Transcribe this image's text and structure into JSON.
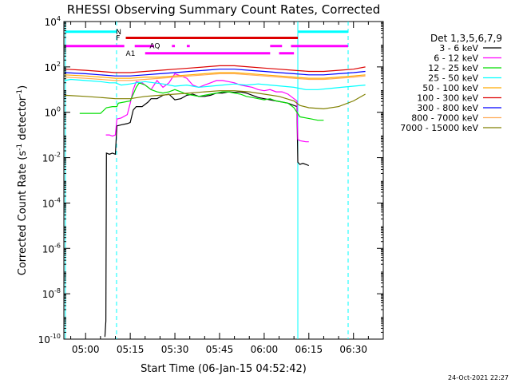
{
  "chart_data": {
    "type": "line",
    "title": "RHESSI Observing Summary Count Rates, Corrected",
    "xlabel": "Start Time (06-Jan-15 04:52:42)",
    "ylabel_main": "Corrected Count Rate (s",
    "ylabel_sup1": "-1",
    "ylabel_mid": " detector",
    "ylabel_sup2": "-1",
    "ylabel_end": ")",
    "ylog": true,
    "ylim_exp": [
      -10,
      4
    ],
    "xlim_min": [
      -7.3,
      100
    ],
    "xticks": [
      {
        "label": "05:00",
        "min": 0
      },
      {
        "label": "05:15",
        "min": 15
      },
      {
        "label": "05:30",
        "min": 30
      },
      {
        "label": "05:45",
        "min": 45
      },
      {
        "label": "06:00",
        "min": 60
      },
      {
        "label": "06:15",
        "min": 75
      },
      {
        "label": "06:30",
        "min": 90
      }
    ],
    "yticks": [
      {
        "base": "10",
        "exp": "4",
        "v": 4
      },
      {
        "base": "10",
        "exp": "2",
        "v": 2
      },
      {
        "base": "10",
        "exp": "0",
        "v": 0
      },
      {
        "base": "10",
        "exp": "-2",
        "v": -2
      },
      {
        "base": "10",
        "exp": "-4",
        "v": -4
      },
      {
        "base": "10",
        "exp": "-6",
        "v": -6
      },
      {
        "base": "10",
        "exp": "-8",
        "v": -8
      },
      {
        "base": "10",
        "exp": "-10",
        "v": -10
      }
    ],
    "legend_title": "Det 1,3,5,6,7,9",
    "legend_placement": "right",
    "series": [
      {
        "name": "3 - 6 keV",
        "color": "#000000",
        "points": [
          [
            6.5,
            -9.9
          ],
          [
            6.8,
            -9.2
          ],
          [
            7,
            -1.8
          ],
          [
            8,
            -1.85
          ],
          [
            9,
            -1.8
          ],
          [
            10,
            -1.85
          ],
          [
            10.5,
            -0.6
          ],
          [
            12,
            -0.55
          ],
          [
            14,
            -0.5
          ],
          [
            15,
            -0.45
          ],
          [
            16,
            0.1
          ],
          [
            17,
            0.25
          ],
          [
            19,
            0.25
          ],
          [
            21,
            0.45
          ],
          [
            22,
            0.6
          ],
          [
            24,
            0.6
          ],
          [
            26,
            0.75
          ],
          [
            28,
            0.8
          ],
          [
            30,
            0.55
          ],
          [
            32,
            0.6
          ],
          [
            34,
            0.75
          ],
          [
            36,
            0.8
          ],
          [
            38,
            0.7
          ],
          [
            40,
            0.7
          ],
          [
            42,
            0.75
          ],
          [
            44,
            0.85
          ],
          [
            46,
            0.85
          ],
          [
            48,
            0.9
          ],
          [
            50,
            0.88
          ],
          [
            52,
            0.9
          ],
          [
            54,
            0.85
          ],
          [
            56,
            0.75
          ],
          [
            58,
            0.65
          ],
          [
            60,
            0.6
          ],
          [
            62,
            0.55
          ],
          [
            64,
            0.5
          ],
          [
            66,
            0.45
          ],
          [
            68,
            0.4
          ],
          [
            70,
            0.3
          ],
          [
            71,
            0.25
          ],
          [
            71.3,
            -2.2
          ],
          [
            72,
            -2.3
          ],
          [
            73,
            -2.25
          ],
          [
            74,
            -2.3
          ],
          [
            75,
            -2.35
          ]
        ]
      },
      {
        "name": "6 - 12 keV",
        "color": "#ff00ff",
        "points": [
          [
            6.8,
            -1.0
          ],
          [
            8,
            -1.0
          ],
          [
            9,
            -1.05
          ],
          [
            10,
            -1.0
          ],
          [
            10.5,
            -0.3
          ],
          [
            12,
            -0.25
          ],
          [
            14,
            -0.1
          ],
          [
            15,
            0.4
          ],
          [
            16,
            1.0
          ],
          [
            17,
            1.35
          ],
          [
            19,
            1.3
          ],
          [
            21,
            1.1
          ],
          [
            22,
            1.0
          ],
          [
            24,
            1.4
          ],
          [
            26,
            1.1
          ],
          [
            28,
            1.3
          ],
          [
            30,
            1.7
          ],
          [
            32,
            1.6
          ],
          [
            34,
            1.5
          ],
          [
            36,
            1.2
          ],
          [
            38,
            1.1
          ],
          [
            40,
            1.2
          ],
          [
            42,
            1.3
          ],
          [
            44,
            1.4
          ],
          [
            46,
            1.4
          ],
          [
            48,
            1.35
          ],
          [
            50,
            1.3
          ],
          [
            52,
            1.2
          ],
          [
            54,
            1.15
          ],
          [
            56,
            1.1
          ],
          [
            58,
            1.0
          ],
          [
            60,
            0.95
          ],
          [
            62,
            1.0
          ],
          [
            64,
            0.9
          ],
          [
            66,
            0.9
          ],
          [
            68,
            0.8
          ],
          [
            70,
            0.6
          ],
          [
            71,
            0.5
          ],
          [
            71.3,
            -1.2
          ],
          [
            72,
            -1.25
          ],
          [
            74,
            -1.3
          ],
          [
            75,
            -1.3
          ]
        ]
      },
      {
        "name": "12 - 25 keV",
        "color": "#00dd00",
        "points": [
          [
            -2,
            -0.05
          ],
          [
            -1,
            -0.05
          ],
          [
            3,
            -0.05
          ],
          [
            5,
            -0.05
          ],
          [
            7,
            0.2
          ],
          [
            9,
            0.25
          ],
          [
            10.5,
            0.25
          ],
          [
            11,
            0.4
          ],
          [
            13,
            0.45
          ],
          [
            15,
            0.5
          ],
          [
            16,
            0.8
          ],
          [
            17,
            1.1
          ],
          [
            18,
            1.3
          ],
          [
            20,
            1.2
          ],
          [
            22,
            1.0
          ],
          [
            24,
            0.9
          ],
          [
            26,
            0.85
          ],
          [
            28,
            0.9
          ],
          [
            30,
            1.0
          ],
          [
            32,
            0.9
          ],
          [
            34,
            0.8
          ],
          [
            36,
            0.75
          ],
          [
            38,
            0.7
          ],
          [
            40,
            0.75
          ],
          [
            42,
            0.8
          ],
          [
            44,
            0.85
          ],
          [
            46,
            0.9
          ],
          [
            48,
            0.9
          ],
          [
            50,
            0.85
          ],
          [
            52,
            0.8
          ],
          [
            54,
            0.7
          ],
          [
            56,
            0.65
          ],
          [
            58,
            0.6
          ],
          [
            60,
            0.55
          ],
          [
            62,
            0.6
          ],
          [
            64,
            0.5
          ],
          [
            66,
            0.45
          ],
          [
            68,
            0.4
          ],
          [
            70,
            0.2
          ],
          [
            71,
            0.0
          ],
          [
            72,
            -0.2
          ],
          [
            74,
            -0.25
          ],
          [
            76,
            -0.3
          ],
          [
            78,
            -0.35
          ],
          [
            80,
            -0.35
          ]
        ]
      },
      {
        "name": "25 - 50 keV",
        "color": "#00ffff",
        "points": [
          [
            -7,
            1.4
          ],
          [
            -5,
            1.45
          ],
          [
            0,
            1.4
          ],
          [
            5,
            1.35
          ],
          [
            8,
            1.3
          ],
          [
            10,
            1.3
          ],
          [
            12,
            1.2
          ],
          [
            15,
            1.25
          ],
          [
            17,
            1.3
          ],
          [
            20,
            1.35
          ],
          [
            23,
            1.3
          ],
          [
            26,
            1.25
          ],
          [
            30,
            1.15
          ],
          [
            34,
            1.2
          ],
          [
            38,
            1.1
          ],
          [
            42,
            1.15
          ],
          [
            46,
            1.2
          ],
          [
            50,
            1.25
          ],
          [
            54,
            1.2
          ],
          [
            58,
            1.25
          ],
          [
            62,
            1.2
          ],
          [
            66,
            1.15
          ],
          [
            70,
            1.1
          ],
          [
            72,
            1.05
          ],
          [
            74,
            1.0
          ],
          [
            78,
            1.0
          ],
          [
            82,
            1.05
          ],
          [
            86,
            1.1
          ],
          [
            90,
            1.15
          ],
          [
            94,
            1.2
          ]
        ]
      },
      {
        "name": "50 - 100 keV",
        "color": "#ffaa00",
        "points": [
          [
            -7,
            1.65
          ],
          [
            0,
            1.6
          ],
          [
            5,
            1.55
          ],
          [
            10,
            1.5
          ],
          [
            15,
            1.5
          ],
          [
            20,
            1.55
          ],
          [
            25,
            1.55
          ],
          [
            30,
            1.6
          ],
          [
            35,
            1.65
          ],
          [
            40,
            1.7
          ],
          [
            45,
            1.75
          ],
          [
            50,
            1.75
          ],
          [
            55,
            1.7
          ],
          [
            60,
            1.65
          ],
          [
            65,
            1.6
          ],
          [
            70,
            1.55
          ],
          [
            75,
            1.5
          ],
          [
            80,
            1.5
          ],
          [
            85,
            1.55
          ],
          [
            90,
            1.6
          ],
          [
            94,
            1.65
          ]
        ]
      },
      {
        "name": "100 - 300 keV",
        "color": "#dd0000",
        "points": [
          [
            -7,
            1.9
          ],
          [
            0,
            1.85
          ],
          [
            5,
            1.8
          ],
          [
            10,
            1.75
          ],
          [
            15,
            1.75
          ],
          [
            20,
            1.8
          ],
          [
            25,
            1.85
          ],
          [
            30,
            1.9
          ],
          [
            35,
            1.95
          ],
          [
            40,
            2.0
          ],
          [
            45,
            2.05
          ],
          [
            50,
            2.05
          ],
          [
            55,
            2.0
          ],
          [
            60,
            1.95
          ],
          [
            65,
            1.9
          ],
          [
            70,
            1.85
          ],
          [
            75,
            1.8
          ],
          [
            80,
            1.8
          ],
          [
            85,
            1.85
          ],
          [
            90,
            1.9
          ],
          [
            94,
            2.0
          ]
        ]
      },
      {
        "name": "300 - 800 keV",
        "color": "#0000ff",
        "points": [
          [
            -7,
            1.75
          ],
          [
            0,
            1.7
          ],
          [
            5,
            1.65
          ],
          [
            10,
            1.6
          ],
          [
            15,
            1.6
          ],
          [
            20,
            1.65
          ],
          [
            25,
            1.7
          ],
          [
            30,
            1.75
          ],
          [
            35,
            1.8
          ],
          [
            40,
            1.85
          ],
          [
            45,
            1.9
          ],
          [
            50,
            1.9
          ],
          [
            55,
            1.85
          ],
          [
            60,
            1.8
          ],
          [
            65,
            1.75
          ],
          [
            70,
            1.7
          ],
          [
            75,
            1.65
          ],
          [
            80,
            1.65
          ],
          [
            85,
            1.7
          ],
          [
            90,
            1.75
          ],
          [
            94,
            1.8
          ]
        ]
      },
      {
        "name": "800 - 7000 keV",
        "color": "#ffaa55",
        "points": [
          [
            -7,
            1.55
          ],
          [
            0,
            1.5
          ],
          [
            5,
            1.45
          ],
          [
            10,
            1.4
          ],
          [
            15,
            1.4
          ],
          [
            20,
            1.45
          ],
          [
            25,
            1.5
          ],
          [
            30,
            1.55
          ],
          [
            35,
            1.6
          ],
          [
            40,
            1.65
          ],
          [
            45,
            1.7
          ],
          [
            50,
            1.7
          ],
          [
            55,
            1.65
          ],
          [
            60,
            1.6
          ],
          [
            65,
            1.55
          ],
          [
            70,
            1.5
          ],
          [
            75,
            1.45
          ],
          [
            80,
            1.45
          ],
          [
            85,
            1.5
          ],
          [
            90,
            1.55
          ],
          [
            94,
            1.6
          ]
        ]
      },
      {
        "name": "7000 - 15000 keV",
        "color": "#808000",
        "points": [
          [
            -7,
            0.75
          ],
          [
            0,
            0.7
          ],
          [
            5,
            0.65
          ],
          [
            10,
            0.6
          ],
          [
            15,
            0.6
          ],
          [
            20,
            0.7
          ],
          [
            25,
            0.75
          ],
          [
            30,
            0.8
          ],
          [
            35,
            0.85
          ],
          [
            40,
            0.9
          ],
          [
            45,
            0.95
          ],
          [
            50,
            0.95
          ],
          [
            55,
            0.9
          ],
          [
            60,
            0.8
          ],
          [
            65,
            0.7
          ],
          [
            70,
            0.5
          ],
          [
            72,
            0.3
          ],
          [
            75,
            0.2
          ],
          [
            80,
            0.15
          ],
          [
            85,
            0.25
          ],
          [
            90,
            0.5
          ],
          [
            94,
            0.8
          ]
        ]
      }
    ],
    "vlines": [
      {
        "min": -6.8,
        "color": "#00ffff",
        "dash": false
      },
      {
        "min": 10.4,
        "color": "#00ffff",
        "dash": true
      },
      {
        "min": 71.3,
        "color": "#00ffff",
        "dash": false
      },
      {
        "min": 88.2,
        "color": "#00ffff",
        "dash": true
      }
    ],
    "flag_bars": [
      {
        "label": "N",
        "color": "#00ffff",
        "label_min": 10.2,
        "v": 3.55,
        "segments": [
          [
            -6.8,
            10.4
          ],
          [
            71.3,
            88.2
          ]
        ]
      },
      {
        "label": "F",
        "color": "#dd0000",
        "label_min": 10.2,
        "v": 3.28,
        "segments": [
          [
            13.5,
            71.3
          ]
        ]
      },
      {
        "label": "AQ",
        "color": "#ff00ff",
        "label_min": 21.5,
        "v": 2.92,
        "segments": [
          [
            -6.8,
            13.0
          ],
          [
            16.5,
            23.0
          ],
          [
            29.0,
            30.0
          ],
          [
            34.0,
            35.0
          ],
          [
            62.0,
            66.0
          ],
          [
            69.0,
            88.2
          ]
        ]
      },
      {
        "label": "A1",
        "color": "#ff00ff",
        "label_min": 13.5,
        "v": 2.6,
        "segments": [
          [
            20.0,
            62.0
          ],
          [
            65.0,
            70.0
          ]
        ]
      }
    ],
    "timestamp": "24-Oct-2021 22:27"
  }
}
